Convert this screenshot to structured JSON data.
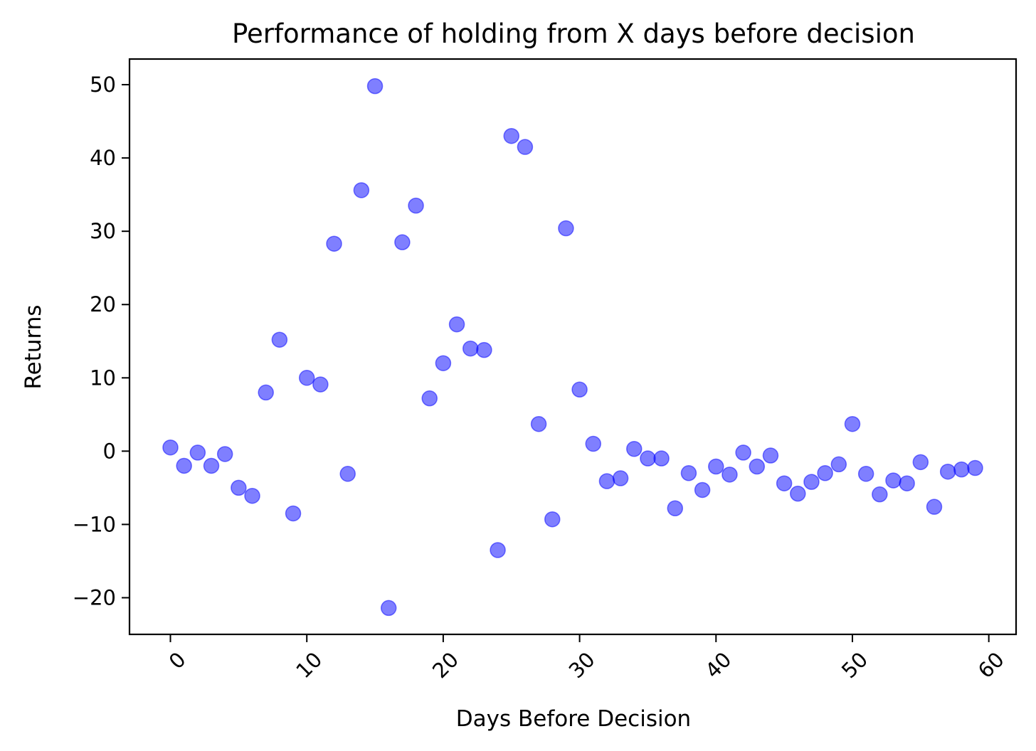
{
  "chart_data": {
    "type": "scatter",
    "title": "Performance of holding from X days before decision",
    "xlabel": "Days Before Decision",
    "ylabel": "Returns",
    "xlim": [
      -3,
      62
    ],
    "ylim": [
      -25,
      53.5
    ],
    "xticks": [
      0,
      10,
      20,
      30,
      40,
      50,
      60
    ],
    "yticks": [
      -20,
      -10,
      0,
      10,
      20,
      30,
      40,
      50
    ],
    "xtick_labels": [
      "0",
      "10",
      "20",
      "30",
      "40",
      "50",
      "60"
    ],
    "ytick_labels": [
      "−20",
      "−10",
      "0",
      "10",
      "20",
      "30",
      "40",
      "50"
    ],
    "xtick_rotation": -45,
    "grid": false,
    "marker_color": "#0000ff",
    "marker_alpha": 0.5,
    "series": [
      {
        "x": [
          0,
          1,
          2,
          3,
          4,
          5,
          6,
          7,
          8,
          9,
          10,
          11,
          12,
          13,
          14,
          15,
          16,
          17,
          18,
          19,
          20,
          21,
          22,
          23,
          24,
          25,
          26,
          27,
          28,
          29,
          30,
          31,
          32,
          33,
          34,
          35,
          36,
          37,
          38,
          39,
          40,
          41,
          42,
          43,
          44,
          45,
          46,
          47,
          48,
          49,
          50,
          51,
          52,
          53,
          54,
          55,
          56,
          57,
          58,
          59
        ],
        "y": [
          0.5,
          -2.0,
          -0.2,
          -2.0,
          -0.4,
          -5.0,
          -6.1,
          8.0,
          15.2,
          -8.5,
          10.0,
          9.1,
          28.3,
          -3.1,
          35.6,
          49.8,
          -21.4,
          28.5,
          33.5,
          7.2,
          12.0,
          17.3,
          14.0,
          13.8,
          -13.5,
          43.0,
          41.5,
          3.7,
          -9.3,
          30.4,
          8.4,
          1.0,
          -4.1,
          -3.7,
          0.3,
          -1.0,
          -1.0,
          -7.8,
          -3.0,
          -5.3,
          -2.1,
          -3.2,
          -0.2,
          -2.1,
          -0.6,
          -4.4,
          -5.8,
          -4.2,
          -3.0,
          -1.8,
          3.7,
          -3.1,
          -5.9,
          -4.0,
          -4.4,
          -1.5,
          -7.6,
          -2.8,
          -2.5,
          -2.3
        ]
      }
    ]
  }
}
